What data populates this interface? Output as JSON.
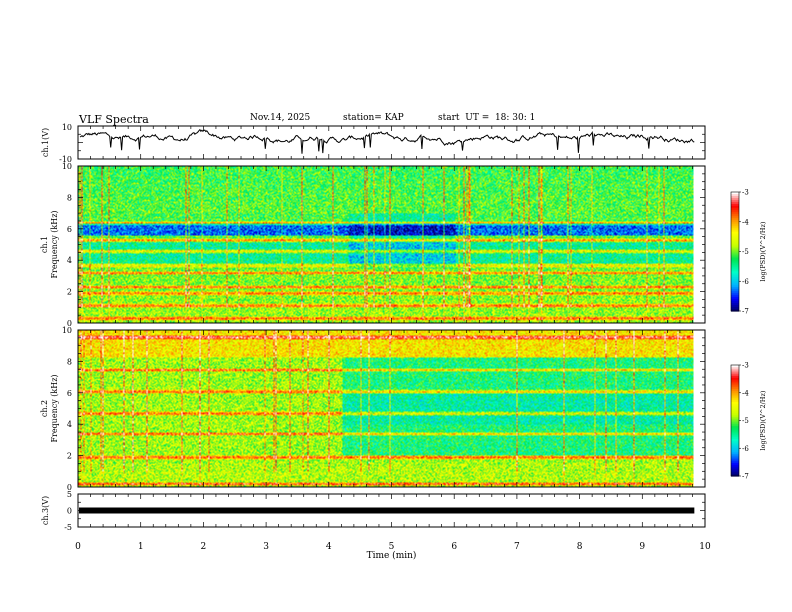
{
  "header": {
    "title": "VLF Spectra",
    "date": "Nov.14, 2025",
    "station": "station= KAP",
    "start_ut": "start  UT =  18: 30: 1"
  },
  "chart_data": [
    {
      "type": "line",
      "panel": "ch1-waveform",
      "ylabel": "ch.1(V)",
      "ylim": [
        -10,
        10
      ],
      "y_tick_labels": [
        "10",
        "-10"
      ],
      "x_range_min": [
        0,
        9.83
      ],
      "description_of_series": "noisy waveform oscillating around about 3 V with amplitude of a few volts"
    },
    {
      "type": "heatmap",
      "panel": "ch1-spectrogram",
      "ylabel_channel": "ch.1",
      "ylabel": "Frequency (kHz)",
      "ylim": [
        0,
        10
      ],
      "y_tick_labels": [
        "0",
        "2",
        "4",
        "6",
        "8",
        "10"
      ],
      "xlim": [
        0,
        10
      ],
      "colorbar": {
        "label": "log(PSD)(V^2/Hz)",
        "range": [
          -7,
          -3
        ],
        "tick_labels": [
          "-3",
          "-4",
          "-5",
          "-6",
          "-7"
        ]
      },
      "bands_khz": [
        0.3,
        1.1,
        1.9,
        2.3,
        3.2,
        3.7,
        4.6,
        5.3,
        6.4
      ]
    },
    {
      "type": "heatmap",
      "panel": "ch2-spectrogram",
      "ylabel_channel": "ch.2",
      "ylabel": "Frequency (kHz)",
      "ylim": [
        0,
        10
      ],
      "y_tick_labels": [
        "0",
        "2",
        "4",
        "6",
        "8",
        "10"
      ],
      "xlim": [
        0,
        10
      ],
      "colorbar": {
        "label": "log(PSD)(V^2/Hz)",
        "range": [
          -7,
          -3
        ],
        "tick_labels": [
          "-3",
          "-4",
          "-5",
          "-6",
          "-7"
        ]
      },
      "bands_khz": [
        0.2,
        1.9,
        3.4,
        4.7,
        6.1,
        7.5,
        9.6
      ]
    },
    {
      "type": "line",
      "panel": "ch3-waveform",
      "ylabel": "ch.3(V)",
      "ylim": [
        -5,
        5
      ],
      "y_tick_labels": [
        "5",
        "0",
        "-5"
      ],
      "series": [
        {
          "name": "ch.3",
          "x": [
            0,
            9.83
          ],
          "y": [
            0,
            0
          ]
        }
      ]
    }
  ],
  "xaxis": {
    "label": "Time  (min)",
    "tick_labels": [
      "0",
      "1",
      "2",
      "3",
      "4",
      "5",
      "6",
      "7",
      "8",
      "9",
      "10"
    ],
    "range": [
      0,
      10
    ],
    "data_end_min": 9.83
  },
  "colors": {
    "colormap": [
      "#00005a",
      "#0000ff",
      "#00b4ff",
      "#00ffc8",
      "#00e650",
      "#c8ff00",
      "#ffff00",
      "#ff8c00",
      "#ff0000",
      "#ffffff"
    ]
  }
}
